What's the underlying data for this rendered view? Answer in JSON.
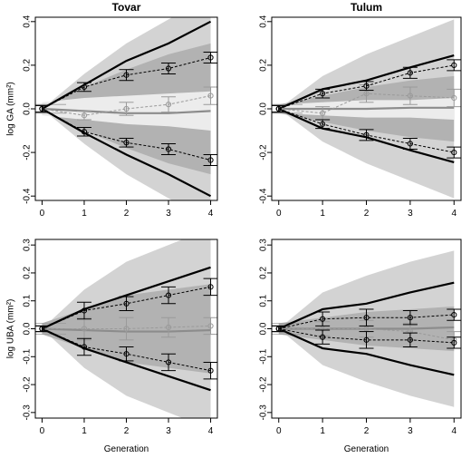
{
  "figure": {
    "xlabel": "Generation"
  },
  "colors": {
    "outer_band": "#d3d3d3",
    "inner_band": "#b2b2b2",
    "light_band": "#ececec",
    "main_line": "#000000",
    "null_line": "#8c8c8c",
    "null_points": "#9a9a9a"
  },
  "chart_data": [
    {
      "type": "line",
      "title": "Tovar",
      "ylabel": "log GA (mm²)",
      "xlabel": "",
      "x": [
        0,
        1,
        2,
        3,
        4
      ],
      "ylim": [
        -0.42,
        0.42
      ],
      "yticks": [
        -0.4,
        -0.2,
        0.0,
        0.2,
        0.4
      ],
      "ytick_labels": [
        "-0.4",
        "-0.2",
        "0.0",
        "0.2",
        "0.4"
      ],
      "xtick_labels": [
        "0",
        "1",
        "2",
        "3",
        "4"
      ],
      "bands": [
        {
          "fill": "outer",
          "upper": [
            0.0,
            0.16,
            0.3,
            0.41,
            0.52
          ],
          "lower": [
            0.0,
            -0.16,
            -0.3,
            -0.41,
            -0.52
          ]
        },
        {
          "fill": "inner",
          "upper": [
            0.0,
            0.1,
            0.18,
            0.25,
            0.3
          ],
          "lower": [
            0.0,
            -0.1,
            -0.18,
            -0.25,
            -0.3
          ]
        },
        {
          "fill": "light",
          "upper": [
            0.03,
            0.05,
            0.06,
            0.07,
            0.08
          ],
          "lower": [
            -0.03,
            -0.05,
            -0.07,
            -0.08,
            -0.1
          ]
        }
      ],
      "series": [
        {
          "role": "upper-line",
          "values": [
            0.0,
            0.11,
            0.22,
            0.3,
            0.4
          ]
        },
        {
          "role": "lower-line",
          "values": [
            0.0,
            -0.11,
            -0.21,
            -0.3,
            -0.4
          ]
        },
        {
          "role": "null-line",
          "values": [
            0.0,
            -0.01,
            -0.02,
            -0.02,
            -0.01
          ]
        },
        {
          "role": "upper-obs",
          "values": [
            0.0,
            0.1,
            0.155,
            0.185,
            0.235
          ],
          "err": [
            0.015,
            0.02,
            0.025,
            0.025,
            0.025
          ]
        },
        {
          "role": "lower-obs",
          "values": [
            0.0,
            -0.105,
            -0.155,
            -0.185,
            -0.235
          ],
          "err": [
            0.015,
            0.02,
            0.02,
            0.025,
            0.025
          ]
        },
        {
          "role": "null-obs",
          "values": [
            0.0,
            -0.03,
            0.0,
            0.02,
            0.06
          ],
          "err": [
            0.015,
            0.02,
            0.03,
            0.035,
            0.04
          ]
        }
      ]
    },
    {
      "type": "line",
      "title": "Tulum",
      "ylabel": "",
      "xlabel": "",
      "x": [
        0,
        1,
        2,
        3,
        4
      ],
      "ylim": [
        -0.42,
        0.42
      ],
      "yticks": [
        -0.4,
        -0.2,
        0.0,
        0.2,
        0.4
      ],
      "ytick_labels": [
        "-0.4",
        "-0.2",
        "0.0",
        "0.2",
        "0.4"
      ],
      "xtick_labels": [
        "0",
        "1",
        "2",
        "3",
        "4"
      ],
      "bands": [
        {
          "fill": "outer",
          "upper": [
            0.0,
            0.15,
            0.25,
            0.33,
            0.41
          ],
          "lower": [
            0.0,
            -0.15,
            -0.25,
            -0.33,
            -0.41
          ]
        },
        {
          "fill": "inner",
          "upper": [
            0.02,
            0.06,
            0.1,
            0.13,
            0.15
          ],
          "lower": [
            -0.02,
            -0.06,
            -0.1,
            -0.13,
            -0.15
          ]
        },
        {
          "fill": "light",
          "upper": [
            0.02,
            0.03,
            0.04,
            0.04,
            0.05
          ],
          "lower": [
            -0.02,
            -0.03,
            -0.04,
            -0.04,
            -0.05
          ]
        }
      ],
      "series": [
        {
          "role": "upper-line",
          "values": [
            0.0,
            0.09,
            0.13,
            0.19,
            0.245
          ]
        },
        {
          "role": "lower-line",
          "values": [
            0.0,
            -0.09,
            -0.13,
            -0.19,
            -0.245
          ]
        },
        {
          "role": "null-line",
          "values": [
            0.0,
            0.0,
            0.0,
            0.005,
            0.005
          ]
        },
        {
          "role": "upper-obs",
          "values": [
            0.0,
            0.07,
            0.105,
            0.165,
            0.2
          ],
          "err": [
            0.015,
            0.02,
            0.02,
            0.025,
            0.025
          ]
        },
        {
          "role": "lower-obs",
          "values": [
            0.0,
            -0.07,
            -0.12,
            -0.16,
            -0.2
          ],
          "err": [
            0.015,
            0.02,
            0.025,
            0.025,
            0.025
          ]
        },
        {
          "role": "null-obs",
          "values": [
            0.0,
            -0.02,
            0.07,
            0.06,
            0.05
          ],
          "err": [
            0.015,
            0.03,
            0.04,
            0.04,
            0.04
          ]
        }
      ]
    },
    {
      "type": "line",
      "title": "",
      "ylabel": "log UBA (mm²)",
      "xlabel": "Generation",
      "x": [
        0,
        1,
        2,
        3,
        4
      ],
      "ylim": [
        -0.32,
        0.32
      ],
      "yticks": [
        -0.3,
        -0.2,
        -0.1,
        0.0,
        0.1,
        0.2,
        0.3
      ],
      "ytick_labels": [
        "-0.3",
        "-0.2",
        "-0.1",
        "0.0",
        "0.1",
        "0.2",
        "0.3"
      ],
      "xtick_labels": [
        "0",
        "1",
        "2",
        "3",
        "4"
      ],
      "bands": [
        {
          "fill": "outer",
          "upper": [
            0.0,
            0.14,
            0.24,
            0.3,
            0.36
          ],
          "lower": [
            0.0,
            -0.14,
            -0.24,
            -0.3,
            -0.36
          ]
        },
        {
          "fill": "inner",
          "upper": [
            0.02,
            0.07,
            0.12,
            0.14,
            0.16
          ],
          "lower": [
            -0.02,
            -0.07,
            -0.12,
            -0.14,
            -0.16
          ]
        }
      ],
      "series": [
        {
          "role": "upper-line",
          "values": [
            0.0,
            0.07,
            0.12,
            0.17,
            0.22
          ]
        },
        {
          "role": "lower-line",
          "values": [
            0.0,
            -0.07,
            -0.12,
            -0.17,
            -0.22
          ]
        },
        {
          "role": "null-line",
          "values": [
            0.0,
            -0.005,
            -0.01,
            -0.01,
            -0.005
          ]
        },
        {
          "role": "upper-obs",
          "values": [
            0.0,
            0.065,
            0.09,
            0.12,
            0.15
          ],
          "err": [
            0.01,
            0.03,
            0.025,
            0.03,
            0.03
          ]
        },
        {
          "role": "lower-obs",
          "values": [
            0.0,
            -0.065,
            -0.09,
            -0.12,
            -0.15
          ],
          "err": [
            0.01,
            0.03,
            0.025,
            0.03,
            0.03
          ]
        },
        {
          "role": "null-obs",
          "values": [
            0.0,
            0.0,
            0.0,
            0.005,
            0.01
          ],
          "err": [
            0.01,
            0.04,
            0.04,
            0.035,
            0.03
          ]
        }
      ]
    },
    {
      "type": "line",
      "title": "",
      "ylabel": "",
      "xlabel": "Generation",
      "x": [
        0,
        1,
        2,
        3,
        4
      ],
      "ylim": [
        -0.32,
        0.32
      ],
      "yticks": [
        -0.3,
        -0.2,
        -0.1,
        0.0,
        0.1,
        0.2,
        0.3
      ],
      "ytick_labels": [
        "-0.3",
        "-0.2",
        "-0.1",
        "0.0",
        "0.1",
        "0.2",
        "0.3"
      ],
      "xtick_labels": [
        "0",
        "1",
        "2",
        "3",
        "4"
      ],
      "bands": [
        {
          "fill": "outer",
          "upper": [
            0.0,
            0.13,
            0.19,
            0.24,
            0.28
          ],
          "lower": [
            0.0,
            -0.13,
            -0.19,
            -0.24,
            -0.28
          ]
        },
        {
          "fill": "inner",
          "upper": [
            0.02,
            0.04,
            0.06,
            0.07,
            0.08
          ],
          "lower": [
            -0.02,
            -0.04,
            -0.06,
            -0.07,
            -0.08
          ]
        }
      ],
      "series": [
        {
          "role": "upper-line",
          "values": [
            0.0,
            0.07,
            0.09,
            0.13,
            0.165
          ]
        },
        {
          "role": "lower-line",
          "values": [
            0.0,
            -0.07,
            -0.09,
            -0.13,
            -0.165
          ]
        },
        {
          "role": "null-line",
          "values": [
            0.0,
            0.0,
            0.0,
            0.0,
            0.005
          ]
        },
        {
          "role": "upper-obs",
          "values": [
            0.0,
            0.035,
            0.04,
            0.04,
            0.05
          ],
          "err": [
            0.01,
            0.025,
            0.03,
            0.025,
            0.02
          ]
        },
        {
          "role": "lower-obs",
          "values": [
            0.0,
            -0.03,
            -0.04,
            -0.04,
            -0.05
          ],
          "err": [
            0.01,
            0.025,
            0.03,
            0.025,
            0.02
          ]
        },
        {
          "role": "null-obs",
          "values": [
            0.0,
            0.0,
            0.0,
            -0.01,
            -0.04
          ],
          "err": [
            0.01,
            0.025,
            0.03,
            0.03,
            0.03
          ]
        }
      ]
    }
  ]
}
